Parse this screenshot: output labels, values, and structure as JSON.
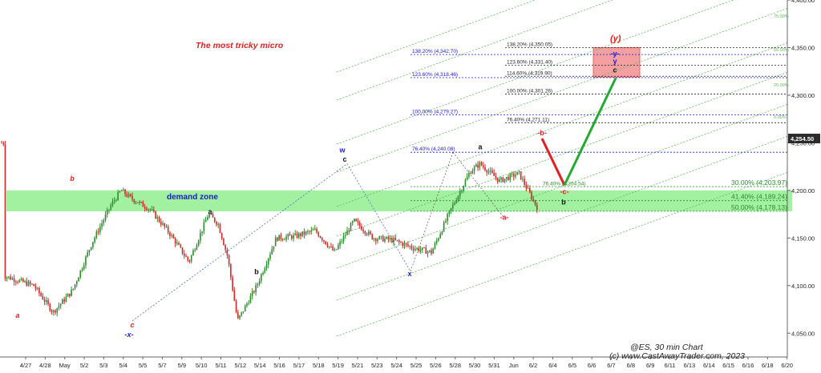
{
  "chart_data": {
    "type": "candlestick",
    "title": "The most tricky micro",
    "symbol_label": "@ES, 30 min Chart",
    "copyright": "(c) www.CastAwayTrader.com, 2023",
    "ylim": [
      4025,
      4400
    ],
    "y_ticks": [
      {
        "v": 4050,
        "label": "4,050.00"
      },
      {
        "v": 4100,
        "label": "4,100.00"
      },
      {
        "v": 4150,
        "label": "4,150.00"
      },
      {
        "v": 4200,
        "label": "4,200.00"
      },
      {
        "v": 4250,
        "label": "4,250.00"
      },
      {
        "v": 4300,
        "label": "4,300.00"
      },
      {
        "v": 4350,
        "label": "4,350.00"
      },
      {
        "v": 4400,
        "label": "4,400.00"
      }
    ],
    "current_price": {
      "v": 4254.5,
      "label": "4,254.50"
    },
    "x_ticks": [
      "4/27",
      "4/28",
      "May",
      "5/2",
      "5/3",
      "5/4",
      "5/5",
      "5/7",
      "5/9",
      "5/10",
      "5/11",
      "5/12",
      "5/14",
      "5/16",
      "5/17",
      "5/18",
      "5/19",
      "5/21",
      "5/23",
      "5/24",
      "5/25",
      "5/26",
      "5/28",
      "5/30",
      "5/31",
      "Jun",
      "6/2",
      "6/4",
      "6/5",
      "6/6",
      "6/7",
      "6/8",
      "6/9",
      "6/11",
      "6/13",
      "6/14",
      "6/15",
      "6/16",
      "6/18",
      "6/20"
    ],
    "price_path": [
      [
        0,
        4110
      ],
      [
        3,
        4100
      ],
      [
        5,
        4072
      ],
      [
        7,
        4095
      ],
      [
        9,
        4145
      ],
      [
        11,
        4185
      ],
      [
        12,
        4200
      ],
      [
        13,
        4192
      ],
      [
        15,
        4180
      ],
      [
        17,
        4155
      ],
      [
        19,
        4125
      ],
      [
        21,
        4175
      ],
      [
        22,
        4165
      ],
      [
        23,
        4130
      ],
      [
        24,
        4063
      ],
      [
        26,
        4100
      ],
      [
        28,
        4150
      ],
      [
        30,
        4152
      ],
      [
        32,
        4158
      ],
      [
        34,
        4135
      ],
      [
        36,
        4168
      ],
      [
        38,
        4150
      ],
      [
        40,
        4148
      ],
      [
        42,
        4140
      ],
      [
        44,
        4135
      ],
      [
        46,
        4180
      ],
      [
        48,
        4220
      ],
      [
        49,
        4228
      ],
      [
        51,
        4210
      ],
      [
        53,
        4218
      ],
      [
        55,
        4180
      ],
      [
        56,
        4165
      ],
      [
        58,
        4140
      ],
      [
        59,
        4115
      ],
      [
        61,
        4160
      ],
      [
        63,
        4185
      ],
      [
        64,
        4225
      ],
      [
        65,
        4240
      ],
      [
        67,
        4228
      ],
      [
        68,
        4238
      ],
      [
        70,
        4208
      ],
      [
        71,
        4190
      ],
      [
        73,
        4184
      ],
      [
        74,
        4175
      ],
      [
        75,
        4200
      ],
      [
        77,
        4244
      ],
      [
        78,
        4254
      ],
      [
        79,
        4250
      ]
    ],
    "forecast_path": [
      {
        "x": 79,
        "y": 4254.5,
        "color": "#e02020"
      },
      {
        "x": 83,
        "y": 4205.5,
        "color": "#22aa33"
      },
      {
        "x": 90,
        "y": 4318,
        "color": "#22aa33"
      }
    ],
    "demand_zone": {
      "label": "demand zone",
      "y_low": 4178,
      "y_high": 4200,
      "x_start": 0,
      "x_end": 81
    },
    "target_box": {
      "label": "(y)",
      "y_low": 4319,
      "y_high": 4350,
      "x_start": 87,
      "x_end": 94
    },
    "fib_blue": [
      {
        "label": "138.20% (4,342.70)",
        "v": 4342.7
      },
      {
        "label": "123.60% (4,318.46)",
        "v": 4318.46
      },
      {
        "label": "100.00% (4,279.27)",
        "v": 4279.27
      },
      {
        "label": "76.40% (4,240.08)",
        "v": 4240.08
      }
    ],
    "fib_black": [
      {
        "label": "138.20% (4,350.05)",
        "v": 4350.05
      },
      {
        "label": "123.60% (4,331.40)",
        "v": 4331.4
      },
      {
        "label": "114.60% (4,319.90)",
        "v": 4319.9
      },
      {
        "label": "100.00% (4,301.26)",
        "v": 4301.26
      },
      {
        "label": "76.40% (4,271.11)",
        "v": 4271.11
      }
    ],
    "fib_green": [
      {
        "label": "30.00% (4,203.97)",
        "v": 4203.97
      },
      {
        "label": "41.40% (4,189.24)",
        "v": 4189.24
      },
      {
        "label": "50.00% (4,178.13)",
        "v": 4178.13
      }
    ],
    "fib_green_small": {
      "label": "76.40% (4,204.54)",
      "v": 4204.54
    },
    "channel_pct": [
      "75.00%",
      "50.00%",
      "25.00%",
      "0.00%"
    ],
    "wave_labels": [
      {
        "text": "a",
        "x": 4.5,
        "y": 4066,
        "color": "#e02020",
        "italic": true
      },
      {
        "text": "b",
        "x": 12,
        "y": 4210,
        "color": "#e02020",
        "italic": true
      },
      {
        "text": "c",
        "x": 24,
        "y": 4056,
        "color": "#e02020",
        "italic": true
      },
      {
        "text": "-x-",
        "x": 24,
        "y": 4046,
        "color": "#1a1acc",
        "italic": true
      },
      {
        "text": "a",
        "x": 37,
        "y": 4175,
        "color": "#111",
        "italic": false
      },
      {
        "text": "b",
        "x": 46,
        "y": 4112,
        "color": "#111",
        "italic": false
      },
      {
        "text": "w",
        "x": 62.5,
        "y": 4240,
        "color": "#1a1acc",
        "italic": false
      },
      {
        "text": "c",
        "x": 63,
        "y": 4230,
        "color": "#111",
        "italic": false
      },
      {
        "text": "x",
        "x": 74.5,
        "y": 4110,
        "color": "#1a1acc",
        "italic": false
      },
      {
        "text": "a",
        "x": 87.5,
        "y": 4243,
        "color": "#111",
        "italic": false
      },
      {
        "text": "-a-",
        "x": 91.5,
        "y": 4169,
        "color": "#e02020",
        "italic": false
      },
      {
        "text": "-b-",
        "x": 98.5,
        "y": 4258,
        "color": "#e02020",
        "italic": false
      },
      {
        "text": "-c-",
        "x": 102.5,
        "y": 4196,
        "color": "#e02020",
        "italic": false
      },
      {
        "text": "b",
        "x": 102.5,
        "y": 4185,
        "color": "#111",
        "italic": false
      },
      {
        "text": "-y-",
        "x": 112,
        "y": 4341,
        "color": "#1a1acc",
        "italic": false
      },
      {
        "text": "y",
        "x": 112,
        "y": 4333,
        "color": "#1a1acc",
        "italic": false
      },
      {
        "text": "c",
        "x": 112,
        "y": 4324,
        "color": "#111",
        "italic": false
      }
    ],
    "colors": {
      "up": "#2e8b2e",
      "down": "#cc2a2a",
      "demand_zone": "#90ee90",
      "target_box": "#f4a0a0",
      "fib_blue": "#1a1acc",
      "fib_black": "#222222",
      "fib_green": "#2e8b2e",
      "channel": "#5cb85c",
      "wxy_line": "#4a6fc9"
    }
  }
}
